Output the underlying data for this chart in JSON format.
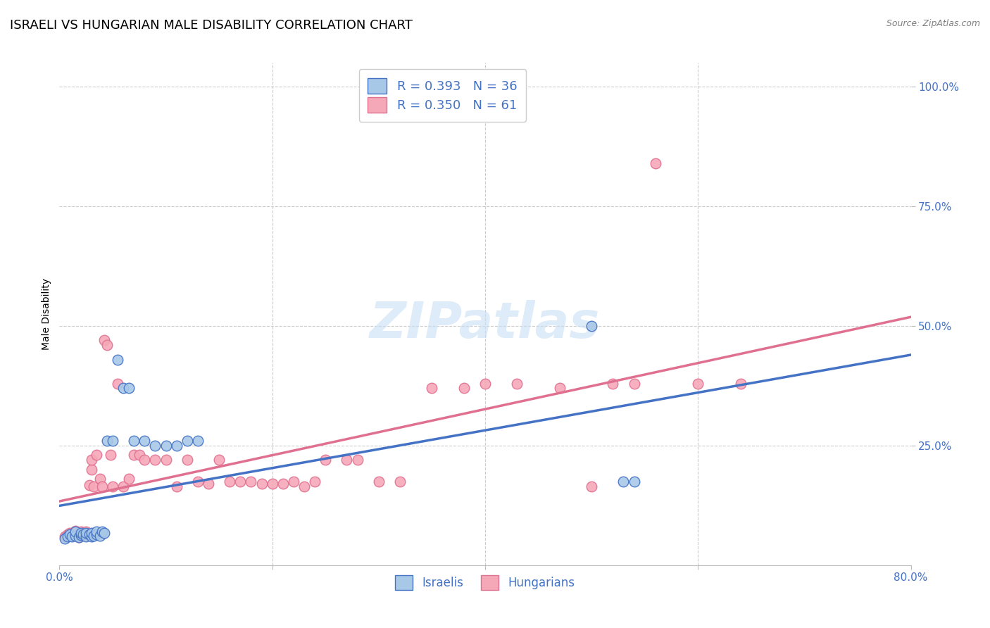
{
  "title": "ISRAELI VS HUNGARIAN MALE DISABILITY CORRELATION CHART",
  "source": "Source: ZipAtlas.com",
  "ylabel": "Male Disability",
  "ytick_labels": [
    "100.0%",
    "75.0%",
    "50.0%",
    "25.0%"
  ],
  "ytick_values": [
    1.0,
    0.75,
    0.5,
    0.25
  ],
  "xlim": [
    0.0,
    0.8
  ],
  "ylim": [
    0.0,
    1.05
  ],
  "israel_color": "#a8c8e8",
  "hungary_color": "#f5a8b8",
  "israel_edge_color": "#4472c4",
  "hungary_edge_color": "#e07090",
  "israel_line_color": "#4472c4",
  "hungary_line_color": "#e07090",
  "israel_R": 0.393,
  "israel_N": 36,
  "hungary_R": 0.35,
  "hungary_N": 61,
  "israel_scatter_x": [
    0.005,
    0.008,
    0.01,
    0.012,
    0.015,
    0.015,
    0.018,
    0.02,
    0.02,
    0.022,
    0.025,
    0.025,
    0.028,
    0.03,
    0.03,
    0.032,
    0.035,
    0.035,
    0.038,
    0.04,
    0.042,
    0.045,
    0.05,
    0.055,
    0.06,
    0.065,
    0.07,
    0.08,
    0.09,
    0.1,
    0.11,
    0.12,
    0.13,
    0.5,
    0.53,
    0.54
  ],
  "israel_scatter_y": [
    0.055,
    0.06,
    0.065,
    0.06,
    0.062,
    0.07,
    0.058,
    0.063,
    0.068,
    0.065,
    0.06,
    0.068,
    0.065,
    0.06,
    0.068,
    0.062,
    0.065,
    0.07,
    0.062,
    0.07,
    0.068,
    0.26,
    0.26,
    0.43,
    0.37,
    0.37,
    0.26,
    0.26,
    0.25,
    0.25,
    0.25,
    0.26,
    0.26,
    0.5,
    0.175,
    0.175
  ],
  "hungary_scatter_x": [
    0.005,
    0.008,
    0.01,
    0.012,
    0.015,
    0.015,
    0.018,
    0.02,
    0.02,
    0.022,
    0.025,
    0.025,
    0.028,
    0.03,
    0.03,
    0.032,
    0.035,
    0.038,
    0.04,
    0.042,
    0.045,
    0.048,
    0.05,
    0.055,
    0.06,
    0.065,
    0.07,
    0.075,
    0.08,
    0.09,
    0.1,
    0.11,
    0.12,
    0.13,
    0.14,
    0.15,
    0.16,
    0.17,
    0.18,
    0.19,
    0.2,
    0.21,
    0.22,
    0.23,
    0.24,
    0.25,
    0.27,
    0.28,
    0.3,
    0.32,
    0.35,
    0.38,
    0.4,
    0.43,
    0.47,
    0.5,
    0.52,
    0.54,
    0.6,
    0.64,
    0.56
  ],
  "hungary_scatter_y": [
    0.06,
    0.065,
    0.068,
    0.062,
    0.065,
    0.072,
    0.058,
    0.065,
    0.07,
    0.068,
    0.062,
    0.07,
    0.168,
    0.2,
    0.22,
    0.165,
    0.23,
    0.18,
    0.165,
    0.47,
    0.46,
    0.23,
    0.165,
    0.38,
    0.165,
    0.18,
    0.23,
    0.23,
    0.22,
    0.22,
    0.22,
    0.165,
    0.22,
    0.175,
    0.17,
    0.22,
    0.175,
    0.175,
    0.175,
    0.17,
    0.17,
    0.17,
    0.175,
    0.165,
    0.175,
    0.22,
    0.22,
    0.22,
    0.175,
    0.175,
    0.37,
    0.37,
    0.38,
    0.38,
    0.37,
    0.165,
    0.38,
    0.38,
    0.38,
    0.38,
    0.84
  ],
  "background_color": "#ffffff",
  "grid_color": "#cccccc",
  "title_fontsize": 13,
  "axis_color": "#4472c4",
  "watermark_text": "ZIPatlas",
  "watermark_color": "#ddeeff"
}
